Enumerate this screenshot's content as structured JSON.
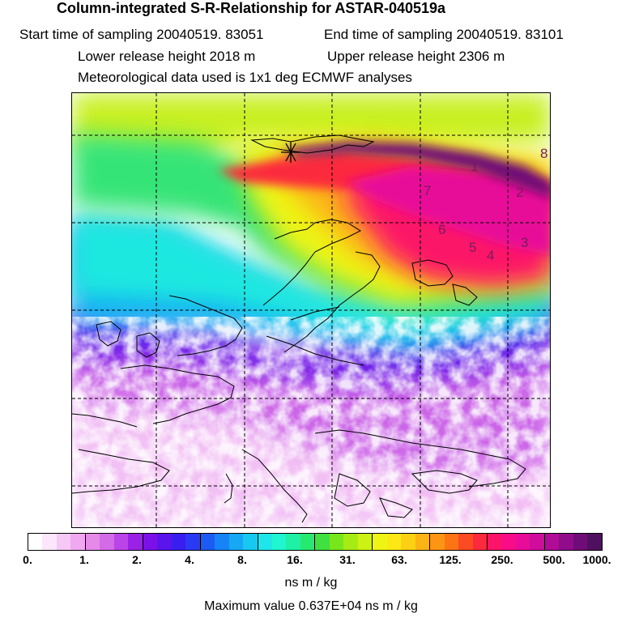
{
  "header": {
    "title": "Column-integrated S-R-Relationship for ASTAR-040519a",
    "start_time": "Start time of sampling 20040519. 83051",
    "end_time": "End time of sampling 20040519. 83101",
    "lower_height": "Lower release height 2018 m",
    "upper_height": "Upper release height 2306 m",
    "met_data": "Meteorological data used is 1x1 deg ECMWF analyses"
  },
  "map": {
    "trajectory_labels": [
      "1",
      "2",
      "3",
      "4",
      "5",
      "6",
      "7",
      "8"
    ],
    "release_marker": "release-site-asterisk-icon"
  },
  "colorbar": {
    "ticks": [
      "0.",
      "1.",
      "2.",
      "4.",
      "8.",
      "16.",
      "31.",
      "63.",
      "125.",
      "250.",
      "500.",
      "1000."
    ],
    "colors": [
      "#ffffff",
      "#fbe6fb",
      "#f6c8f6",
      "#f0a8f0",
      "#e58ae8",
      "#d36ae6",
      "#bb44e8",
      "#9a22e6",
      "#7a12e8",
      "#5a14ec",
      "#3a1ef0",
      "#2a3af4",
      "#1c5cf4",
      "#1684f6",
      "#16a8f4",
      "#18c8f0",
      "#1ee6ea",
      "#20f6d0",
      "#1ef0a4",
      "#26ea70",
      "#40e040",
      "#78e61c",
      "#a6ec14",
      "#ccf214",
      "#eef414",
      "#fce814",
      "#fcd014",
      "#fcb414",
      "#fc9414",
      "#fc7414",
      "#fc4a24",
      "#fc2a3c",
      "#fc1468",
      "#f80c88",
      "#e80c98",
      "#d00c9c",
      "#b00c98",
      "#900c8c",
      "#700c78",
      "#501060"
    ],
    "unit": "ns m / kg"
  },
  "footer": {
    "max_value": "Maximum value  0.637E+04 ns m / kg"
  }
}
